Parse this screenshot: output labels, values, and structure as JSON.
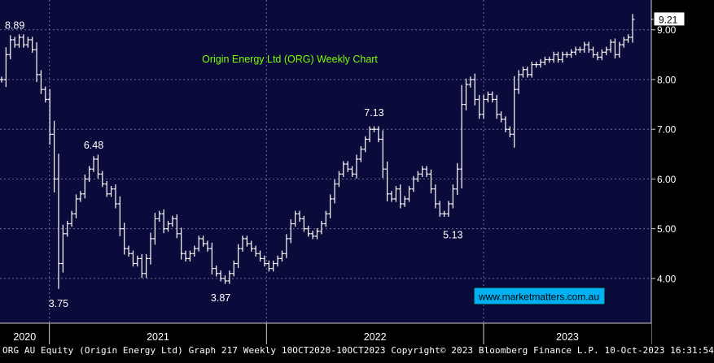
{
  "chart_data": {
    "type": "ohlc",
    "title": "Origin Energy Ltd (ORG) Weekly Chart",
    "watermark": "www.marketmatters.com.au",
    "y_ticks": [
      4.0,
      5.0,
      6.0,
      7.0,
      8.0,
      9.0
    ],
    "y_tick_labels": [
      "4.00",
      "5.00",
      "6.00",
      "7.00",
      "8.00",
      "9.00"
    ],
    "ylim": [
      3.1,
      9.6
    ],
    "x_labels": [
      {
        "label": "2020",
        "year": 2020
      },
      {
        "label": "2021",
        "year": 2021
      },
      {
        "label": "2022",
        "year": 2022
      },
      {
        "label": "2023",
        "year": 2023
      }
    ],
    "x_range": [
      "2020-10-10",
      "2023-10-10"
    ],
    "last_price": 9.21,
    "last_price_label": "9.21",
    "grid": true,
    "colors": {
      "background": "#0b0b3b",
      "grid": "#6f6f9a",
      "bars": "#ffffff",
      "title": "#7CFC00",
      "watermark_text": "#000000",
      "watermark_bg": "#00b0f0",
      "price_box": "#ffffff"
    },
    "annotations": [
      {
        "label": "8.89",
        "value": 8.89
      },
      {
        "label": "3.75",
        "value": 3.75
      },
      {
        "label": "6.48",
        "value": 6.48
      },
      {
        "label": "3.87",
        "value": 3.87
      },
      {
        "label": "7.13",
        "value": 7.13
      },
      {
        "label": "5.13",
        "value": 5.13
      }
    ],
    "series": [
      {
        "closes": [
          8.0,
          8.5,
          8.8,
          8.7,
          8.85,
          8.7,
          8.8,
          8.6,
          8.1,
          7.8,
          7.6,
          6.9,
          6.0,
          4.3,
          4.9,
          5.1,
          5.3,
          5.6,
          5.7,
          6.0,
          6.2,
          6.4,
          6.1,
          5.9,
          5.7,
          5.8,
          5.5,
          5.0,
          4.6,
          4.5,
          4.3,
          4.4,
          4.1,
          4.4,
          4.8,
          5.2,
          5.3,
          5.0,
          5.1,
          5.2,
          4.9,
          4.5,
          4.4,
          4.5,
          4.6,
          4.8,
          4.7,
          4.6,
          4.2,
          4.1,
          4.0,
          3.95,
          4.1,
          4.3,
          4.6,
          4.8,
          4.7,
          4.6,
          4.5,
          4.4,
          4.3,
          4.2,
          4.3,
          4.4,
          4.5,
          4.8,
          5.1,
          5.3,
          5.2,
          5.0,
          4.9,
          4.85,
          4.95,
          5.1,
          5.3,
          5.6,
          5.9,
          6.1,
          6.3,
          6.2,
          6.1,
          6.4,
          6.6,
          6.8,
          7.0,
          7.0,
          6.8,
          6.2,
          5.7,
          5.6,
          5.8,
          5.5,
          5.6,
          5.8,
          6.0,
          6.1,
          6.2,
          6.1,
          5.8,
          5.5,
          5.3,
          5.3,
          5.5,
          5.8,
          6.2,
          7.5,
          7.9,
          8.0,
          7.6,
          7.3,
          7.6,
          7.7,
          7.6,
          7.3,
          7.2,
          7.0,
          6.9,
          7.8,
          8.1,
          8.2,
          8.1,
          8.3,
          8.3,
          8.35,
          8.4,
          8.4,
          8.5,
          8.4,
          8.5,
          8.5,
          8.55,
          8.6,
          8.6,
          8.7,
          8.6,
          8.5,
          8.45,
          8.55,
          8.6,
          8.75,
          8.5,
          8.7,
          8.8,
          8.85,
          9.21
        ]
      }
    ]
  },
  "footer": {
    "text": "ORG AU Equity (Origin Energy Ltd) Graph 217  Weekly 10OCT2020-10OCT2023 Copyright© 2023 Bloomberg Finance L.P. 10-Oct-2023 16:31:54"
  }
}
